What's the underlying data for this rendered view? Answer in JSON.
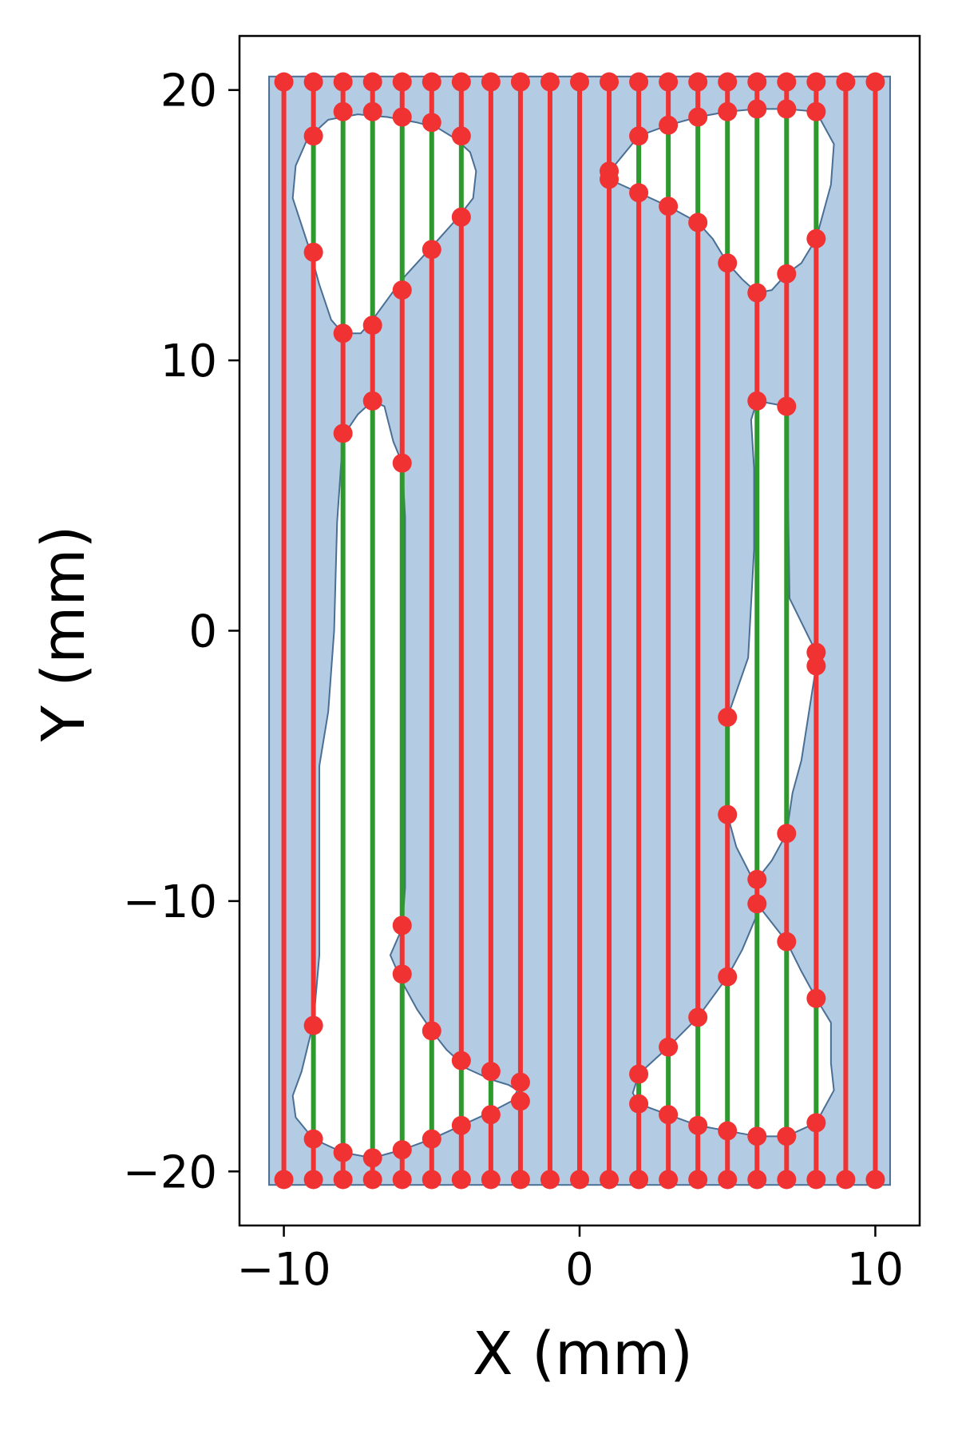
{
  "chart_data": {
    "type": "scatter",
    "title": "",
    "xlabel": "X (mm)",
    "ylabel": "Y (mm)",
    "xlim": [
      -11.5,
      11.5
    ],
    "ylim": [
      -22,
      22
    ],
    "xticks": [
      -10,
      0,
      10
    ],
    "yticks": [
      -20,
      -10,
      0,
      10,
      20
    ],
    "xtick_labels": [
      "−10",
      "0",
      "10"
    ],
    "ytick_labels": [
      "−20",
      "−10",
      "0",
      "10",
      "20"
    ],
    "grid": false,
    "colors": {
      "region_fill": "#b3cce4",
      "region_edge": "#4a6f94",
      "scan_line": "#f03232",
      "hole_segment": "#2e9a2e",
      "point": "#f03232"
    },
    "region": {
      "x": [
        -10.5,
        10.5
      ],
      "y": [
        -20.5,
        20.5
      ]
    },
    "holes": [
      [
        [
          -9.6,
          17.2
        ],
        [
          -9.2,
          18.2
        ],
        [
          -8.5,
          18.9
        ],
        [
          -7.5,
          19.1
        ],
        [
          -6.5,
          19.0
        ],
        [
          -5.5,
          18.8
        ],
        [
          -4.8,
          18.6
        ],
        [
          -4.2,
          18.2
        ],
        [
          -3.7,
          17.7
        ],
        [
          -3.5,
          17.0
        ],
        [
          -3.6,
          16.0
        ],
        [
          -4.1,
          15.3
        ],
        [
          -5.0,
          14.2
        ],
        [
          -6.0,
          13.0
        ],
        [
          -7.0,
          11.5
        ],
        [
          -7.4,
          11.0
        ],
        [
          -8.0,
          11.0
        ],
        [
          -8.4,
          11.5
        ],
        [
          -8.8,
          12.8
        ],
        [
          -9.1,
          14.0
        ],
        [
          -9.7,
          16.0
        ]
      ],
      [
        [
          -7.0,
          8.5
        ],
        [
          -6.6,
          8.3
        ],
        [
          -6.3,
          7.0
        ],
        [
          -6.0,
          6.2
        ],
        [
          -5.9,
          4.2
        ],
        [
          -5.9,
          -9.5
        ],
        [
          -6.0,
          -11.0
        ],
        [
          -6.4,
          -12.0
        ],
        [
          -6.0,
          -13.0
        ],
        [
          -5.5,
          -14.0
        ],
        [
          -5.0,
          -14.8
        ],
        [
          -4.5,
          -15.5
        ],
        [
          -3.8,
          -16.2
        ],
        [
          -3.0,
          -16.6
        ],
        [
          -2.4,
          -16.8
        ],
        [
          -2.1,
          -17.0
        ],
        [
          -2.3,
          -17.4
        ],
        [
          -3.0,
          -17.8
        ],
        [
          -4.0,
          -18.3
        ],
        [
          -5.0,
          -18.8
        ],
        [
          -6.0,
          -19.2
        ],
        [
          -7.0,
          -19.5
        ],
        [
          -8.0,
          -19.3
        ],
        [
          -9.0,
          -18.8
        ],
        [
          -9.6,
          -18.0
        ],
        [
          -9.7,
          -17.2
        ],
        [
          -9.4,
          -16.3
        ],
        [
          -9.0,
          -14.5
        ],
        [
          -8.8,
          -12.0
        ],
        [
          -8.8,
          -5.0
        ],
        [
          -8.5,
          -3.0
        ],
        [
          -8.3,
          0.0
        ],
        [
          -8.2,
          4.0
        ],
        [
          -8.0,
          7.2
        ],
        [
          -7.5,
          8.0
        ]
      ],
      [
        [
          1.0,
          16.7
        ],
        [
          1.1,
          17.1
        ],
        [
          2.0,
          18.3
        ],
        [
          3.0,
          18.7
        ],
        [
          4.0,
          19.0
        ],
        [
          5.0,
          19.2
        ],
        [
          6.0,
          19.3
        ],
        [
          7.0,
          19.3
        ],
        [
          8.0,
          19.2
        ],
        [
          8.6,
          18.0
        ],
        [
          8.5,
          16.5
        ],
        [
          8.0,
          14.5
        ],
        [
          7.5,
          13.6
        ],
        [
          7.0,
          13.2
        ],
        [
          6.5,
          12.6
        ],
        [
          6.0,
          12.5
        ],
        [
          5.5,
          13.0
        ],
        [
          5.0,
          13.6
        ],
        [
          4.5,
          14.5
        ],
        [
          4.0,
          15.1
        ],
        [
          3.0,
          15.7
        ],
        [
          2.0,
          16.2
        ],
        [
          1.2,
          16.6
        ]
      ],
      [
        [
          6.0,
          8.5
        ],
        [
          7.0,
          8.3
        ],
        [
          7.1,
          1.2
        ],
        [
          8.0,
          -0.8
        ],
        [
          8.0,
          -1.3
        ],
        [
          7.5,
          -4.8
        ],
        [
          7.2,
          -6.0
        ],
        [
          7.0,
          -7.5
        ],
        [
          6.5,
          -8.5
        ],
        [
          6.0,
          -9.2
        ],
        [
          6.0,
          -10.1
        ],
        [
          6.5,
          -10.8
        ],
        [
          7.0,
          -11.5
        ],
        [
          7.5,
          -12.6
        ],
        [
          8.0,
          -13.6
        ],
        [
          8.5,
          -14.5
        ],
        [
          8.5,
          -16.0
        ],
        [
          8.6,
          -17.0
        ],
        [
          8.0,
          -18.2
        ],
        [
          7.0,
          -18.7
        ],
        [
          6.0,
          -18.7
        ],
        [
          5.0,
          -18.5
        ],
        [
          4.0,
          -18.3
        ],
        [
          3.0,
          -17.9
        ],
        [
          2.0,
          -17.5
        ],
        [
          1.8,
          -17.1
        ],
        [
          2.0,
          -16.4
        ],
        [
          3.0,
          -15.4
        ],
        [
          4.0,
          -14.3
        ],
        [
          5.0,
          -12.8
        ],
        [
          5.5,
          -11.8
        ],
        [
          6.0,
          -10.5
        ],
        [
          6.0,
          -9.5
        ],
        [
          5.3,
          -8.0
        ],
        [
          5.0,
          -6.8
        ],
        [
          5.0,
          -3.2
        ],
        [
          5.7,
          -1.0
        ],
        [
          5.9,
          3.0
        ],
        [
          5.9,
          6.0
        ],
        [
          5.8,
          7.8
        ]
      ]
    ],
    "scan_lines": [
      {
        "x": -10,
        "y": [
          -20.3,
          20.3
        ]
      },
      {
        "x": -9,
        "y": [
          -20.3,
          -18.8,
          -14.6,
          14.0,
          18.3,
          20.3
        ]
      },
      {
        "x": -8,
        "y": [
          -20.3,
          -19.3,
          7.3,
          11.0,
          19.2,
          20.3
        ]
      },
      {
        "x": -7,
        "y": [
          -20.3,
          -19.5,
          8.5,
          11.3,
          19.2,
          20.3
        ]
      },
      {
        "x": -6,
        "y": [
          -20.3,
          -19.2,
          -12.7,
          -10.9,
          6.2,
          12.6,
          19.0,
          20.3
        ]
      },
      {
        "x": -5,
        "y": [
          -20.3,
          -18.8,
          -14.8,
          14.1,
          18.8,
          20.3
        ]
      },
      {
        "x": -4,
        "y": [
          -20.3,
          -18.3,
          -15.9,
          15.3,
          18.3,
          20.3
        ]
      },
      {
        "x": -3,
        "y": [
          -20.3,
          -17.9,
          -16.3,
          20.3
        ]
      },
      {
        "x": -2,
        "y": [
          -20.3,
          -17.4,
          -16.7,
          20.3
        ]
      },
      {
        "x": -1,
        "y": [
          -20.3,
          20.3
        ]
      },
      {
        "x": 0,
        "y": [
          -20.3,
          20.3
        ]
      },
      {
        "x": 1,
        "y": [
          -20.3,
          16.7,
          17.0,
          20.3
        ]
      },
      {
        "x": 2,
        "y": [
          -20.3,
          -17.5,
          -16.4,
          16.2,
          18.3,
          20.3
        ]
      },
      {
        "x": 3,
        "y": [
          -20.3,
          -17.9,
          -15.4,
          15.7,
          18.7,
          20.3
        ]
      },
      {
        "x": 4,
        "y": [
          -20.3,
          -18.3,
          -14.3,
          15.1,
          19.0,
          20.3
        ]
      },
      {
        "x": 5,
        "y": [
          -20.3,
          -18.5,
          -12.8,
          -6.8,
          -3.2,
          13.6,
          19.2,
          20.3
        ]
      },
      {
        "x": 6,
        "y": [
          -20.3,
          -18.7,
          -10.1,
          -9.2,
          8.5,
          12.5,
          19.3,
          20.3
        ]
      },
      {
        "x": 7,
        "y": [
          -20.3,
          -18.7,
          -11.5,
          -7.5,
          8.3,
          13.2,
          19.3,
          20.3
        ]
      },
      {
        "x": 8,
        "y": [
          -20.3,
          -18.2,
          -13.6,
          -1.3,
          -0.8,
          14.5,
          19.2,
          20.3
        ]
      },
      {
        "x": 9,
        "y": [
          -20.3,
          20.3
        ]
      },
      {
        "x": 10,
        "y": [
          -20.3,
          20.3
        ]
      }
    ]
  }
}
